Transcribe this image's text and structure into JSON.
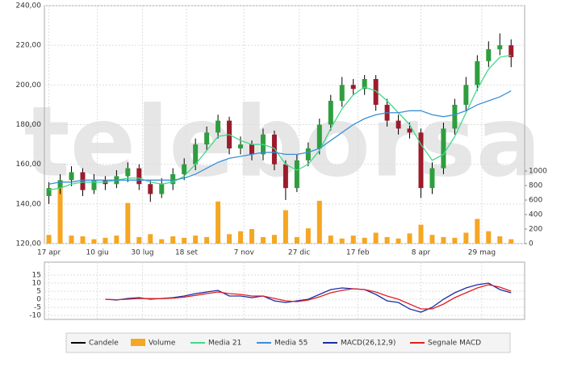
{
  "chart_data": {
    "type": "candlestick",
    "watermark": "teleborsa",
    "x": [
      0,
      10,
      20,
      30,
      40,
      50,
      60,
      70,
      80,
      90,
      100,
      110,
      120,
      130,
      140,
      150,
      160,
      170,
      180,
      190,
      200,
      210,
      220,
      230,
      240,
      250,
      260,
      270,
      280,
      290,
      300,
      310,
      320,
      330,
      340,
      350,
      360,
      370,
      380,
      390,
      400,
      410
    ],
    "xlim": [
      -4,
      422
    ],
    "xticks": [
      {
        "value": 0,
        "label": "17 apr"
      },
      {
        "value": 43,
        "label": "10 giu"
      },
      {
        "value": 83,
        "label": "30 lug"
      },
      {
        "value": 122,
        "label": "18 set"
      },
      {
        "value": 173,
        "label": "7 nov"
      },
      {
        "value": 222,
        "label": "27 dic"
      },
      {
        "value": 274,
        "label": "17 feb"
      },
      {
        "value": 330,
        "label": "8 apr"
      },
      {
        "value": 384,
        "label": "29 mag"
      }
    ],
    "ylim": [
      120,
      240
    ],
    "yticks": [
      {
        "value": 120,
        "label": "120,00"
      },
      {
        "value": 140,
        "label": "140,00"
      },
      {
        "value": 160,
        "label": "160,00"
      },
      {
        "value": 180,
        "label": "180,00"
      },
      {
        "value": 200,
        "label": "200,00"
      },
      {
        "value": 220,
        "label": "220,00"
      },
      {
        "value": 240,
        "label": "240,00"
      }
    ],
    "y2lim": [
      0,
      1000
    ],
    "y2ticks": [
      0,
      200,
      400,
      600,
      800,
      1000
    ],
    "grid": true,
    "candles": {
      "name": "Candele",
      "color": "#000000",
      "up_color": "#2e9e3e",
      "down_color": "#9b1c2c",
      "open": [
        144,
        148,
        152,
        156,
        147,
        152,
        150,
        154,
        158,
        150,
        145,
        150,
        155,
        160,
        170,
        176,
        182,
        168,
        170,
        165,
        175,
        160,
        148,
        162,
        168,
        180,
        192,
        200,
        198,
        203,
        190,
        182,
        178,
        176,
        148,
        158,
        178,
        190,
        200,
        212,
        218,
        220
      ],
      "high": [
        151,
        155,
        159,
        158,
        155,
        154,
        157,
        161,
        160,
        152,
        153,
        158,
        163,
        173,
        179,
        185,
        184,
        174,
        172,
        178,
        177,
        162,
        165,
        171,
        183,
        195,
        204,
        203,
        205,
        205,
        193,
        185,
        181,
        178,
        161,
        181,
        193,
        204,
        215,
        222,
        226,
        223
      ],
      "low": [
        140,
        145,
        149,
        144,
        145,
        147,
        148,
        151,
        147,
        141,
        143,
        147,
        152,
        157,
        167,
        173,
        165,
        165,
        162,
        162,
        157,
        142,
        146,
        159,
        165,
        177,
        189,
        195,
        195,
        187,
        179,
        175,
        173,
        143,
        145,
        155,
        175,
        187,
        197,
        209,
        215,
        209
      ],
      "close": [
        148,
        152,
        156,
        147,
        152,
        150,
        154,
        158,
        150,
        145,
        150,
        155,
        160,
        170,
        176,
        182,
        168,
        170,
        165,
        175,
        160,
        148,
        162,
        168,
        180,
        192,
        200,
        198,
        203,
        190,
        182,
        178,
        176,
        148,
        158,
        178,
        190,
        200,
        212,
        218,
        220,
        214
      ]
    },
    "series": [
      {
        "name": "Volume",
        "type": "bar",
        "axis": "y2",
        "color": "#f5a623",
        "values": [
          120,
          780,
          110,
          100,
          60,
          80,
          110,
          560,
          90,
          130,
          60,
          100,
          80,
          110,
          90,
          580,
          130,
          170,
          200,
          90,
          120,
          460,
          90,
          210,
          590,
          110,
          70,
          110,
          80,
          150,
          90,
          70,
          140,
          260,
          120,
          90,
          80,
          150,
          340,
          170,
          100,
          60
        ]
      },
      {
        "name": "Media 21",
        "color": "#3fd98a",
        "values": [
          147,
          148,
          150,
          151,
          151,
          151,
          152,
          153,
          153,
          151,
          150,
          151,
          154,
          160,
          167,
          174,
          175,
          172,
          170,
          170,
          168,
          160,
          157,
          160,
          167,
          178,
          188,
          195,
          199,
          197,
          192,
          186,
          180,
          170,
          162,
          165,
          174,
          186,
          198,
          208,
          214,
          215
        ]
      },
      {
        "name": "Media 55",
        "color": "#3a8fd8",
        "values": [
          150,
          151,
          151,
          152,
          152,
          152,
          152,
          152,
          152,
          152,
          152,
          152,
          153,
          155,
          158,
          161,
          163,
          164,
          165,
          166,
          166,
          165,
          165,
          166,
          168,
          172,
          176,
          180,
          183,
          185,
          186,
          186,
          187,
          187,
          185,
          184,
          185,
          187,
          190,
          192,
          194,
          197
        ]
      }
    ],
    "macd": {
      "ylim": [
        -12.5,
        23
      ],
      "yticks": [
        15,
        10,
        5,
        0,
        -5,
        -10
      ],
      "series": [
        {
          "name": "MACD(26,12,9)",
          "color": "#1a2ea8",
          "values": [
            null,
            null,
            null,
            null,
            null,
            0,
            -0.5,
            0.5,
            1,
            0,
            0.5,
            1,
            2,
            3.5,
            4.5,
            5.5,
            2,
            2,
            1,
            2,
            -1,
            -2,
            -1,
            0,
            3,
            6,
            7,
            6.5,
            6,
            3,
            -1,
            -2,
            -6,
            -8,
            -5,
            0,
            4,
            7,
            9,
            10,
            6,
            4
          ]
        },
        {
          "name": "Segnale MACD",
          "color": "#e02020",
          "values": [
            null,
            null,
            null,
            null,
            null,
            0,
            -0.3,
            0,
            0.5,
            0.4,
            0.4,
            0.7,
            1.3,
            2.4,
            3.5,
            4.5,
            3.5,
            3,
            2,
            2,
            0.5,
            -1,
            -1.5,
            -0.5,
            1.5,
            4,
            5.5,
            6.5,
            6,
            4.5,
            2,
            0,
            -3,
            -6,
            -6,
            -3,
            1,
            4,
            7,
            9,
            7.5,
            5
          ]
        }
      ]
    }
  }
}
